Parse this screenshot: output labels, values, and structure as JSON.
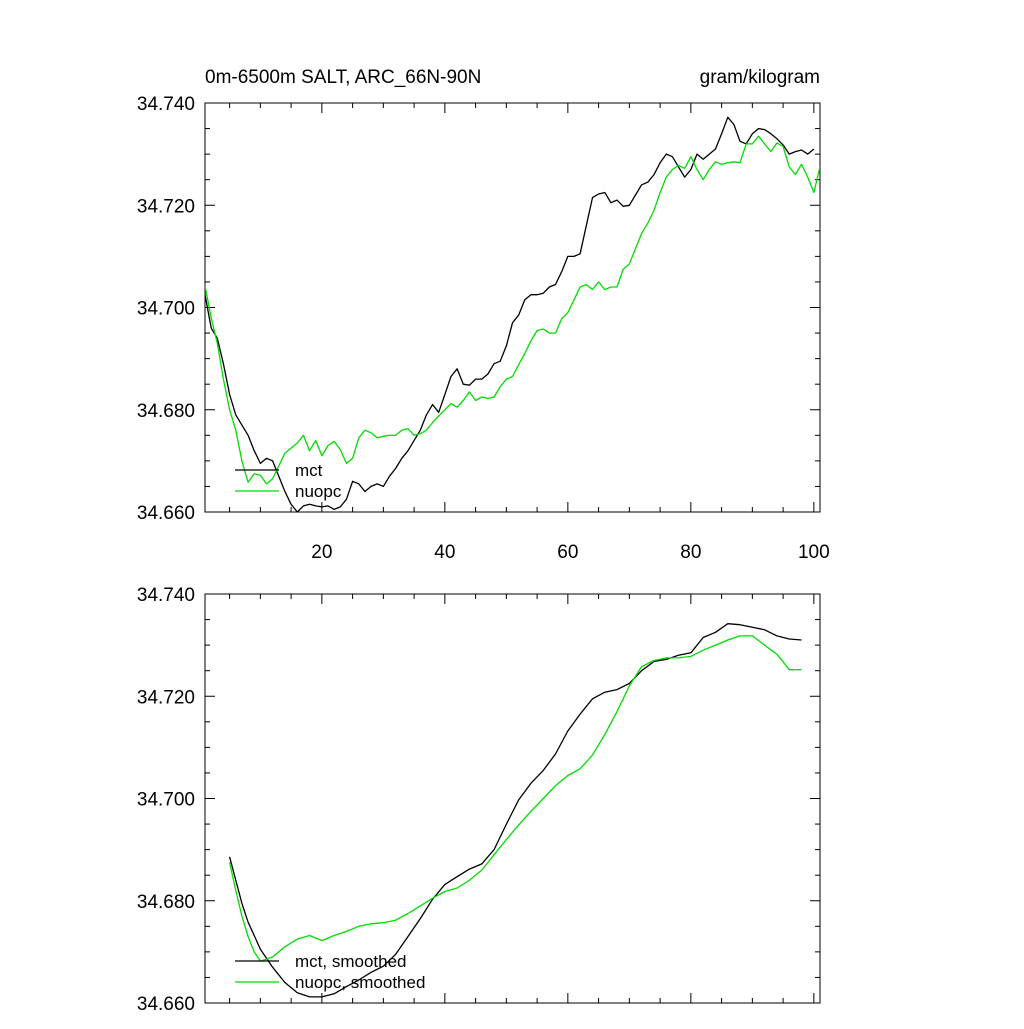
{
  "figure": {
    "title_left": "0m-6500m SALT, ARC_66N-90N",
    "title_right": "gram/kilogram"
  },
  "chart_data": [
    {
      "type": "line",
      "panel": "raw",
      "xlim": [
        1,
        101
      ],
      "ylim": [
        34.66,
        34.74
      ],
      "xticks": [
        20,
        40,
        60,
        80,
        100
      ],
      "xtick_labels": [
        "20",
        "40",
        "60",
        "80",
        "100"
      ],
      "yticks": [
        34.66,
        34.68,
        34.7,
        34.72,
        34.74
      ],
      "ytick_labels": [
        "34.660",
        "34.680",
        "34.700",
        "34.720",
        "34.740"
      ],
      "legend_position": "bottom-left",
      "series": [
        {
          "name": "mct",
          "color": "#000000",
          "x": [
            1,
            2,
            3,
            4,
            5,
            6,
            7,
            8,
            9,
            10,
            11,
            12,
            13,
            14,
            15,
            16,
            17,
            18,
            19,
            20,
            21,
            22,
            23,
            24,
            25,
            26,
            27,
            28,
            29,
            30,
            31,
            32,
            33,
            34,
            35,
            36,
            37,
            38,
            39,
            40,
            41,
            42,
            43,
            44,
            45,
            46,
            47,
            48,
            49,
            50,
            51,
            52,
            53,
            54,
            55,
            56,
            57,
            58,
            59,
            60,
            61,
            62,
            63,
            64,
            65,
            66,
            67,
            68,
            69,
            70,
            71,
            72,
            73,
            74,
            75,
            76,
            77,
            78,
            79,
            80,
            81,
            82,
            83,
            84,
            85,
            86,
            87,
            88,
            89,
            90,
            91,
            92,
            93,
            94,
            95,
            96,
            97,
            98,
            99,
            100
          ],
          "y": [
            34.7025,
            34.696,
            34.694,
            34.689,
            34.683,
            34.679,
            34.677,
            34.675,
            34.672,
            34.6695,
            34.6705,
            34.67,
            34.667,
            34.664,
            34.6615,
            34.66,
            34.6612,
            34.6615,
            34.6612,
            34.661,
            34.6612,
            34.6605,
            34.661,
            34.6625,
            34.666,
            34.6655,
            34.664,
            34.665,
            34.6655,
            34.665,
            34.667,
            34.6685,
            34.6705,
            34.672,
            34.674,
            34.676,
            34.679,
            34.681,
            34.6795,
            34.683,
            34.6865,
            34.688,
            34.685,
            34.6848,
            34.686,
            34.686,
            34.687,
            34.689,
            34.6895,
            34.6925,
            34.697,
            34.6985,
            34.7015,
            34.7025,
            34.7025,
            34.7028,
            34.704,
            34.7045,
            34.707,
            34.71,
            34.71,
            34.7105,
            34.716,
            34.7215,
            34.7222,
            34.7225,
            34.7205,
            34.721,
            34.7198,
            34.72,
            34.722,
            34.724,
            34.7245,
            34.726,
            34.7283,
            34.73,
            34.7295,
            34.7275,
            34.7255,
            34.727,
            34.73,
            34.729,
            34.73,
            34.731,
            34.734,
            34.7372,
            34.7358,
            34.7325,
            34.732,
            34.734,
            34.735,
            34.7348,
            34.734,
            34.733,
            34.7318,
            34.73,
            34.7305,
            34.7308,
            34.73,
            34.731
          ]
        },
        {
          "name": "nuopc",
          "color": "#00dd00",
          "x": [
            1,
            2,
            3,
            4,
            5,
            6,
            7,
            8,
            9,
            10,
            11,
            12,
            13,
            14,
            15,
            16,
            17,
            18,
            19,
            20,
            21,
            22,
            23,
            24,
            25,
            26,
            27,
            28,
            29,
            30,
            31,
            32,
            33,
            34,
            35,
            36,
            37,
            38,
            39,
            40,
            41,
            42,
            43,
            44,
            45,
            46,
            47,
            48,
            49,
            50,
            51,
            52,
            53,
            54,
            55,
            56,
            57,
            58,
            59,
            60,
            61,
            62,
            63,
            64,
            65,
            66,
            67,
            68,
            69,
            70,
            71,
            72,
            73,
            74,
            75,
            76,
            77,
            78,
            79,
            80,
            81,
            82,
            83,
            84,
            85,
            86,
            87,
            88,
            89,
            90,
            91,
            92,
            93,
            94,
            95,
            96,
            97,
            98,
            99,
            100,
            101
          ],
          "y": [
            34.7042,
            34.698,
            34.693,
            34.686,
            34.68,
            34.676,
            34.67,
            34.6658,
            34.6675,
            34.6672,
            34.6655,
            34.6665,
            34.669,
            34.6715,
            34.6725,
            34.6735,
            34.675,
            34.672,
            34.674,
            34.671,
            34.673,
            34.6738,
            34.6722,
            34.6695,
            34.6705,
            34.6745,
            34.676,
            34.6755,
            34.6745,
            34.6748,
            34.675,
            34.675,
            34.676,
            34.6763,
            34.675,
            34.6753,
            34.676,
            34.6775,
            34.6788,
            34.68,
            34.6812,
            34.6805,
            34.6818,
            34.6835,
            34.6818,
            34.6825,
            34.6822,
            34.6825,
            34.6845,
            34.686,
            34.6865,
            34.6888,
            34.691,
            34.6935,
            34.6955,
            34.6958,
            34.695,
            34.695,
            34.6978,
            34.699,
            34.7015,
            34.704,
            34.7045,
            34.7035,
            34.705,
            34.7035,
            34.704,
            34.704,
            34.7075,
            34.7085,
            34.7115,
            34.7145,
            34.7165,
            34.719,
            34.7225,
            34.7255,
            34.727,
            34.7278,
            34.7272,
            34.7295,
            34.727,
            34.725,
            34.727,
            34.7285,
            34.728,
            34.7283,
            34.7285,
            34.7283,
            34.732,
            34.732,
            34.7335,
            34.732,
            34.7305,
            34.7322,
            34.7315,
            34.7275,
            34.726,
            34.728,
            34.7255,
            34.7225,
            34.7275
          ]
        }
      ]
    },
    {
      "type": "line",
      "panel": "smoothed",
      "xlim": [
        1,
        101
      ],
      "ylim": [
        34.66,
        34.74
      ],
      "yticks": [
        34.66,
        34.68,
        34.7,
        34.72,
        34.74
      ],
      "ytick_labels": [
        "34.660",
        "34.680",
        "34.700",
        "34.720",
        "34.740"
      ],
      "legend_position": "bottom-left",
      "series": [
        {
          "name": "mct, smoothed",
          "color": "#000000",
          "x": [
            5,
            6,
            7,
            8,
            9,
            10,
            12,
            14,
            16,
            18,
            20,
            22,
            24,
            26,
            28,
            30,
            32,
            34,
            36,
            38,
            40,
            42,
            44,
            46,
            48,
            50,
            52,
            54,
            56,
            58,
            60,
            62,
            64,
            66,
            68,
            70,
            72,
            74,
            76,
            78,
            80,
            82,
            84,
            86,
            88,
            90,
            92,
            94,
            96,
            98
          ],
          "y": [
            34.6886,
            34.684,
            34.6795,
            34.6758,
            34.6732,
            34.6705,
            34.667,
            34.664,
            34.662,
            34.6612,
            34.6612,
            34.6618,
            34.6632,
            34.6645,
            34.666,
            34.6672,
            34.6695,
            34.673,
            34.6765,
            34.6803,
            34.6832,
            34.6847,
            34.6862,
            34.6872,
            34.69,
            34.695,
            34.6997,
            34.703,
            34.7055,
            34.7087,
            34.7132,
            34.7165,
            34.7195,
            34.7208,
            34.7213,
            34.7225,
            34.725,
            34.7268,
            34.7272,
            34.728,
            34.7285,
            34.7315,
            34.7325,
            34.7342,
            34.734,
            34.7335,
            34.733,
            34.7318,
            34.7312,
            34.731
          ]
        },
        {
          "name": "nuopc, smoothed",
          "color": "#00dd00",
          "x": [
            5,
            6,
            7,
            8,
            9,
            10,
            12,
            14,
            16,
            18,
            20,
            22,
            24,
            26,
            28,
            30,
            32,
            34,
            36,
            38,
            40,
            42,
            44,
            46,
            48,
            50,
            52,
            54,
            56,
            58,
            60,
            62,
            64,
            66,
            68,
            70,
            72,
            74,
            76,
            78,
            80,
            82,
            84,
            86,
            88,
            90,
            92,
            94,
            96,
            98
          ],
          "y": [
            34.6875,
            34.682,
            34.677,
            34.673,
            34.67,
            34.6682,
            34.669,
            34.671,
            34.6725,
            34.6732,
            34.6722,
            34.6732,
            34.674,
            34.675,
            34.6755,
            34.6757,
            34.6762,
            34.6775,
            34.679,
            34.6805,
            34.6818,
            34.6825,
            34.684,
            34.686,
            34.689,
            34.692,
            34.6948,
            34.6975,
            34.7,
            34.7025,
            34.7045,
            34.7058,
            34.7085,
            34.7125,
            34.717,
            34.722,
            34.7258,
            34.727,
            34.7275,
            34.7275,
            34.7278,
            34.729,
            34.73,
            34.731,
            34.7318,
            34.7318,
            34.73,
            34.7282,
            34.7252,
            34.7252
          ]
        }
      ]
    }
  ]
}
